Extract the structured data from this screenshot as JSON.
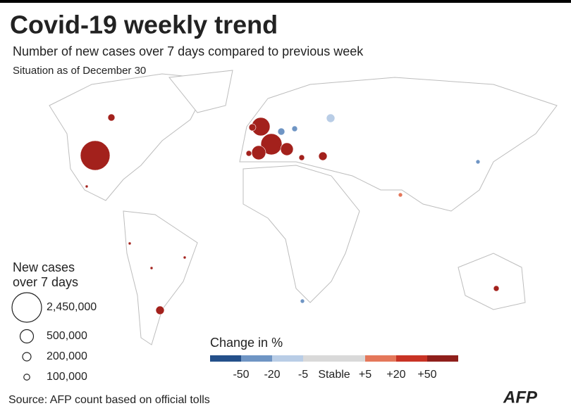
{
  "header": {
    "title": "Covid-19 weekly trend",
    "subtitle": "Number of new cases over 7 days compared to previous week",
    "date": "Situation as of December 30"
  },
  "size_legend": {
    "title_lines": [
      "New cases",
      "over 7 days"
    ],
    "items": [
      {
        "value": 2450000,
        "label": "2,450,000"
      },
      {
        "value": 500000,
        "label": "500,000"
      },
      {
        "value": 200000,
        "label": "200,000"
      },
      {
        "value": 100000,
        "label": "100,000"
      }
    ]
  },
  "color_legend": {
    "title": "Change in %",
    "colors": [
      "#24508a",
      "#6f95c4",
      "#b9cde6",
      "#d9d9d9",
      "#d9d9d9",
      "#e4775a",
      "#c83325",
      "#8f1f1b"
    ],
    "labels": [
      "-50",
      "-20",
      "-5",
      "Stable",
      "+5",
      "+20",
      "+50"
    ]
  },
  "source": "Source: AFP count based on official tolls",
  "logo": "AFP"
}
